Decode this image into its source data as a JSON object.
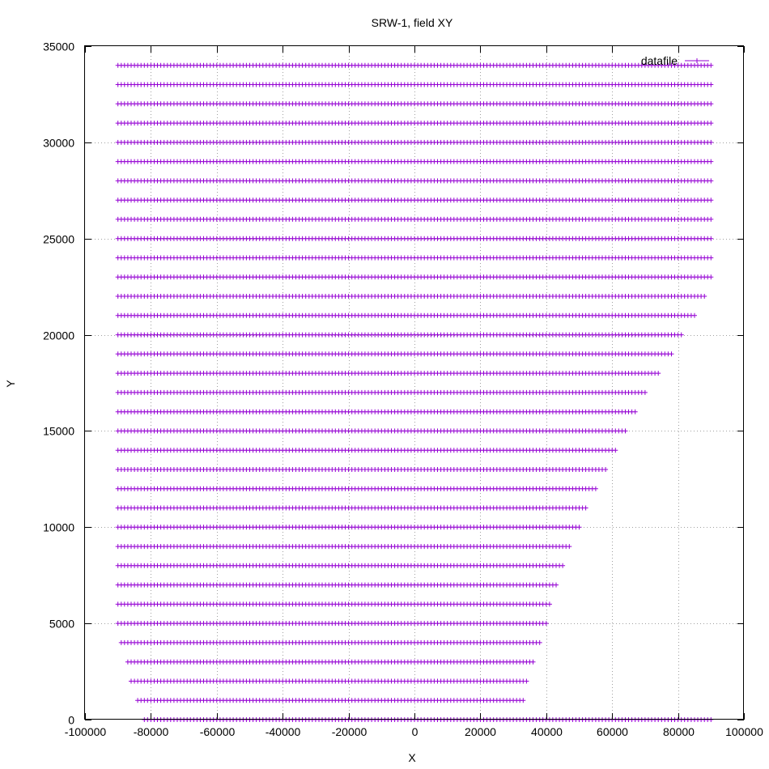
{
  "chart_data": {
    "type": "scatter",
    "title": "SRW-1, field XY",
    "xlabel": "X",
    "ylabel": "Y",
    "xlim": [
      -100000,
      100000
    ],
    "ylim": [
      0,
      35000
    ],
    "xticks": [
      "-100000",
      "-80000",
      "-60000",
      "-40000",
      "-20000",
      "0",
      "20000",
      "40000",
      "60000",
      "80000",
      "100000"
    ],
    "yticks": [
      "0",
      "5000",
      "10000",
      "15000",
      "20000",
      "25000",
      "30000",
      "35000"
    ],
    "grid": true,
    "legend_position": "top-right",
    "marker": "+",
    "series": [
      {
        "name": "datafile",
        "color": "#9400d3",
        "point_spacing_x": 1000,
        "rows": [
          {
            "y": 0,
            "x_start": -82000,
            "x_end": 90000
          },
          {
            "y": 1000,
            "x_start": -84000,
            "x_end": 33000
          },
          {
            "y": 2000,
            "x_start": -86000,
            "x_end": 34000
          },
          {
            "y": 3000,
            "x_start": -87000,
            "x_end": 36000
          },
          {
            "y": 4000,
            "x_start": -89000,
            "x_end": 38000
          },
          {
            "y": 5000,
            "x_start": -90000,
            "x_end": 40000
          },
          {
            "y": 6000,
            "x_start": -90000,
            "x_end": 41000
          },
          {
            "y": 7000,
            "x_start": -90000,
            "x_end": 43000
          },
          {
            "y": 8000,
            "x_start": -90000,
            "x_end": 45000
          },
          {
            "y": 9000,
            "x_start": -90000,
            "x_end": 47000
          },
          {
            "y": 10000,
            "x_start": -90000,
            "x_end": 50000
          },
          {
            "y": 11000,
            "x_start": -90000,
            "x_end": 52000
          },
          {
            "y": 12000,
            "x_start": -90000,
            "x_end": 55000
          },
          {
            "y": 13000,
            "x_start": -90000,
            "x_end": 58000
          },
          {
            "y": 14000,
            "x_start": -90000,
            "x_end": 61000
          },
          {
            "y": 15000,
            "x_start": -90000,
            "x_end": 64000
          },
          {
            "y": 16000,
            "x_start": -90000,
            "x_end": 67000
          },
          {
            "y": 17000,
            "x_start": -90000,
            "x_end": 70000
          },
          {
            "y": 18000,
            "x_start": -90000,
            "x_end": 74000
          },
          {
            "y": 19000,
            "x_start": -90000,
            "x_end": 78000
          },
          {
            "y": 20000,
            "x_start": -90000,
            "x_end": 81000
          },
          {
            "y": 21000,
            "x_start": -90000,
            "x_end": 85000
          },
          {
            "y": 22000,
            "x_start": -90000,
            "x_end": 88000
          },
          {
            "y": 23000,
            "x_start": -90000,
            "x_end": 90000
          },
          {
            "y": 24000,
            "x_start": -90000,
            "x_end": 90000
          },
          {
            "y": 25000,
            "x_start": -90000,
            "x_end": 90000
          },
          {
            "y": 26000,
            "x_start": -90000,
            "x_end": 90000
          },
          {
            "y": 27000,
            "x_start": -90000,
            "x_end": 90000
          },
          {
            "y": 28000,
            "x_start": -90000,
            "x_end": 90000
          },
          {
            "y": 29000,
            "x_start": -90000,
            "x_end": 90000
          },
          {
            "y": 30000,
            "x_start": -90000,
            "x_end": 90000
          },
          {
            "y": 31000,
            "x_start": -90000,
            "x_end": 90000
          },
          {
            "y": 32000,
            "x_start": -90000,
            "x_end": 90000
          },
          {
            "y": 33000,
            "x_start": -90000,
            "x_end": 90000
          },
          {
            "y": 34000,
            "x_start": -90000,
            "x_end": 90000
          }
        ]
      }
    ]
  }
}
